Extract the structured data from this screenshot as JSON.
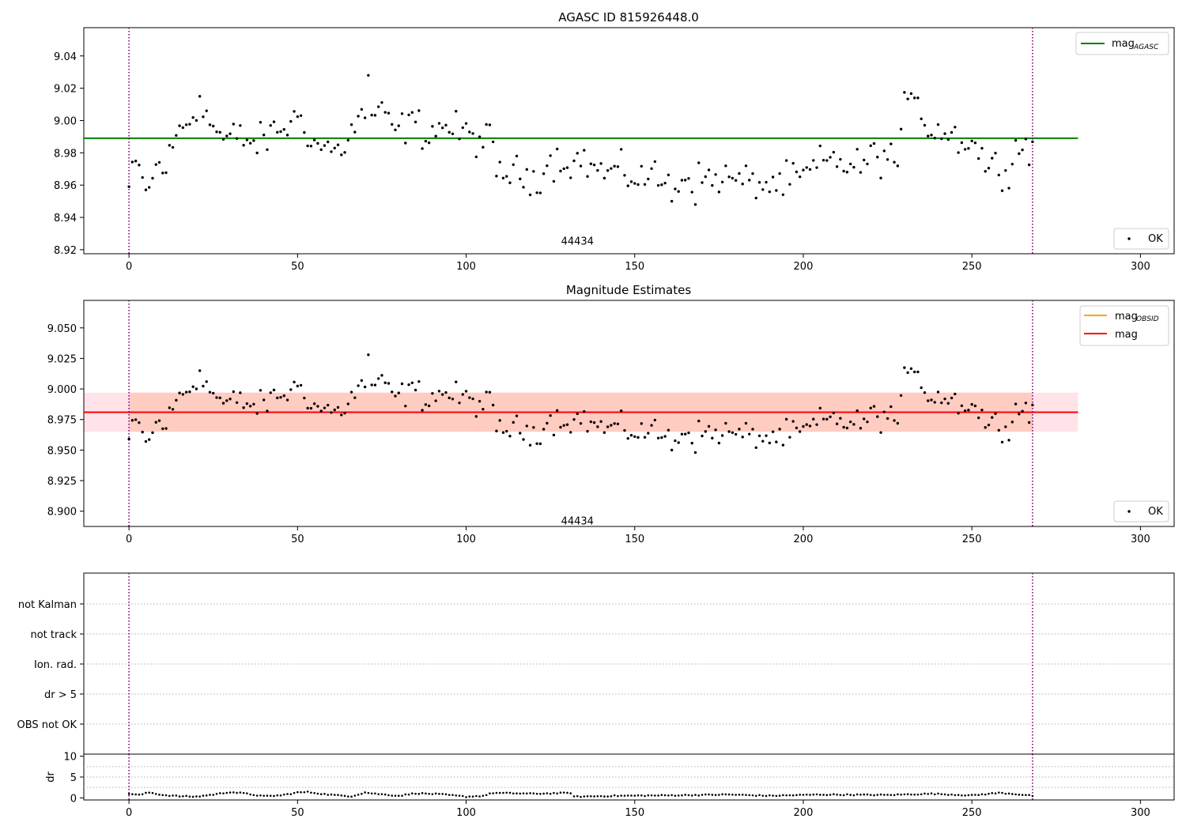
{
  "figure": {
    "title_top": "AGASC ID 815926448.0",
    "title_mid": "Magnitude Estimates",
    "obsid_label": "44434"
  },
  "colors": {
    "agasc_line": "#008000",
    "obsid_line": "#ffa500",
    "mag_line": "#ff0000",
    "band_outer": "#ffc0cb",
    "band_inner": "#ffa07a",
    "vline": "#800080",
    "points": "#000000",
    "grid": "#b0b0b0"
  },
  "chart_data": [
    {
      "type": "scatter",
      "title": "AGASC ID 815926448.0",
      "xlim": [
        -13.4,
        310
      ],
      "ylim": [
        8.9175,
        9.0575
      ],
      "xticks": [
        0,
        50,
        100,
        150,
        200,
        250,
        300
      ],
      "yticks": [
        8.92,
        8.94,
        8.96,
        8.98,
        9.0,
        9.02,
        9.04
      ],
      "ytick_labels": [
        "8.92",
        "8.94",
        "8.96",
        "8.98",
        "9.00",
        "9.02",
        "9.04"
      ],
      "hlines": [
        {
          "name": "mag_AGASC",
          "y": 8.989,
          "xrange": [
            -13.4,
            281.5
          ],
          "color": "green"
        }
      ],
      "vlines": [
        0,
        268
      ],
      "annotation": {
        "text": "44434",
        "x": 133,
        "y": 8.925
      },
      "legend_upper": {
        "loc": "upper right",
        "entries": [
          {
            "main": "mag",
            "sub": "AGASC"
          }
        ]
      },
      "legend_lower": {
        "loc": "lower right",
        "entries": [
          {
            "main": "OK"
          }
        ]
      },
      "series": [
        {
          "name": "OK",
          "marker": "point"
        }
      ]
    },
    {
      "type": "scatter",
      "title": "Magnitude Estimates",
      "xlim": [
        -13.4,
        310
      ],
      "ylim": [
        8.8875,
        9.0725
      ],
      "xticks": [
        0,
        50,
        100,
        150,
        200,
        250,
        300
      ],
      "yticks": [
        8.9,
        8.925,
        8.95,
        8.975,
        9.0,
        9.025,
        9.05
      ],
      "ytick_labels": [
        "8.900",
        "8.925",
        "8.950",
        "8.975",
        "9.000",
        "9.025",
        "9.050"
      ],
      "hlines": [
        {
          "name": "mag_OBSID",
          "y": 8.981,
          "xrange": [
            -13.4,
            281.5
          ],
          "color": "orange"
        },
        {
          "name": "mag",
          "y": 8.981,
          "xrange": [
            -13.4,
            281.5
          ],
          "color": "red"
        }
      ],
      "bands": [
        {
          "y0": 8.965,
          "y1": 8.997,
          "xrange": [
            -13.4,
            281.5
          ],
          "kind": "outer"
        },
        {
          "y0": 8.965,
          "y1": 8.997,
          "xrange": [
            0,
            268
          ],
          "kind": "inner"
        }
      ],
      "vlines": [
        0,
        268
      ],
      "annotation": {
        "text": "44434",
        "x": 133,
        "y": 8.895
      },
      "legend_upper": {
        "loc": "upper right",
        "entries": [
          {
            "main": "mag",
            "sub": "OBSID"
          },
          {
            "main": "mag"
          }
        ]
      },
      "legend_lower": {
        "loc": "lower right",
        "entries": [
          {
            "main": "OK"
          }
        ]
      },
      "series": [
        {
          "name": "OK",
          "marker": "point"
        }
      ]
    },
    {
      "type": "scatter",
      "categories": [
        "not Kalman",
        "not track",
        "Ion. rad.",
        "dr > 5",
        "OBS not OK"
      ],
      "flag_points": [],
      "vlines": [
        0,
        268
      ],
      "grid": "horizontal dotted"
    },
    {
      "type": "scatter",
      "ylabel": "dr",
      "xlim": [
        -13.4,
        310
      ],
      "ylim": [
        -0.5,
        10.5
      ],
      "xticks": [
        0,
        50,
        100,
        150,
        200,
        250,
        300
      ],
      "yticks": [
        0,
        5,
        10
      ],
      "ytick_labels": [
        "0",
        "5",
        "10"
      ],
      "vlines": [
        0,
        268
      ],
      "grid": "horizontal dotted",
      "dr_knots": [
        [
          0,
          1.0
        ],
        [
          3,
          0.7
        ],
        [
          6,
          1.3
        ],
        [
          10,
          0.7
        ],
        [
          15,
          0.4
        ],
        [
          20,
          0.3
        ],
        [
          25,
          0.8
        ],
        [
          30,
          1.4
        ],
        [
          34,
          1.1
        ],
        [
          40,
          0.4
        ],
        [
          45,
          0.6
        ],
        [
          50,
          1.3
        ],
        [
          53,
          1.4
        ],
        [
          58,
          0.9
        ],
        [
          62,
          0.6
        ],
        [
          66,
          0.4
        ],
        [
          70,
          1.3
        ],
        [
          73,
          1.0
        ],
        [
          80,
          0.5
        ],
        [
          85,
          1.1
        ],
        [
          92,
          0.9
        ],
        [
          100,
          0.3
        ],
        [
          105,
          0.5
        ],
        [
          108,
          1.2
        ],
        [
          120,
          1.0
        ],
        [
          131,
          1.2
        ],
        [
          132,
          0.3
        ],
        [
          145,
          0.5
        ],
        [
          160,
          0.6
        ],
        [
          178,
          0.8
        ],
        [
          190,
          0.5
        ],
        [
          205,
          0.8
        ],
        [
          225,
          0.7
        ],
        [
          238,
          1.0
        ],
        [
          250,
          0.6
        ],
        [
          258,
          1.2
        ],
        [
          262,
          1.0
        ],
        [
          268,
          0.5
        ]
      ]
    },
    {
      "mag_knots": [
        [
          0,
          8.958
        ],
        [
          2,
          8.972
        ],
        [
          5,
          8.96
        ],
        [
          6,
          8.955
        ],
        [
          8,
          8.972
        ],
        [
          11,
          8.971
        ],
        [
          15,
          8.995
        ],
        [
          20,
          9.005
        ],
        [
          23,
          9.002
        ],
        [
          28,
          8.988
        ],
        [
          33,
          8.99
        ],
        [
          38,
          8.985
        ],
        [
          43,
          8.993
        ],
        [
          48,
          8.998
        ],
        [
          51,
          9.003
        ],
        [
          55,
          8.985
        ],
        [
          60,
          8.983
        ],
        [
          62,
          8.98
        ],
        [
          66,
          8.993
        ],
        [
          70,
          9.005
        ],
        [
          75,
          9.003
        ],
        [
          80,
          8.993
        ],
        [
          84,
          9.0
        ],
        [
          88,
          8.992
        ],
        [
          93,
          8.997
        ],
        [
          98,
          8.993
        ],
        [
          104,
          8.988
        ],
        [
          107,
          8.988
        ],
        [
          109,
          8.968
        ],
        [
          113,
          8.968
        ],
        [
          117,
          8.965
        ],
        [
          121,
          8.965
        ],
        [
          125,
          8.975
        ],
        [
          130,
          8.975
        ],
        [
          135,
          8.975
        ],
        [
          140,
          8.968
        ],
        [
          145,
          8.968
        ],
        [
          150,
          8.965
        ],
        [
          155,
          8.966
        ],
        [
          160,
          8.96
        ],
        [
          165,
          8.965
        ],
        [
          170,
          8.963
        ],
        [
          175,
          8.965
        ],
        [
          180,
          8.963
        ],
        [
          185,
          8.961
        ],
        [
          190,
          8.96
        ],
        [
          195,
          8.962
        ],
        [
          200,
          8.965
        ],
        [
          205,
          8.973
        ],
        [
          210,
          8.976
        ],
        [
          215,
          8.97
        ],
        [
          220,
          8.977
        ],
        [
          225,
          8.978
        ],
        [
          228,
          8.975
        ],
        [
          230,
          9.005
        ],
        [
          234,
          9.01
        ],
        [
          237,
          8.995
        ],
        [
          240,
          8.995
        ],
        [
          245,
          8.99
        ],
        [
          250,
          8.987
        ],
        [
          255,
          8.972
        ],
        [
          260,
          8.97
        ],
        [
          264,
          8.985
        ],
        [
          268,
          8.985
        ]
      ],
      "notable_points": [
        [
          71,
          9.028
        ],
        [
          21,
          9.015
        ],
        [
          168,
          8.948
        ],
        [
          161,
          8.95
        ],
        [
          186,
          8.952
        ],
        [
          233,
          9.014
        ],
        [
          234,
          9.014
        ]
      ]
    }
  ]
}
